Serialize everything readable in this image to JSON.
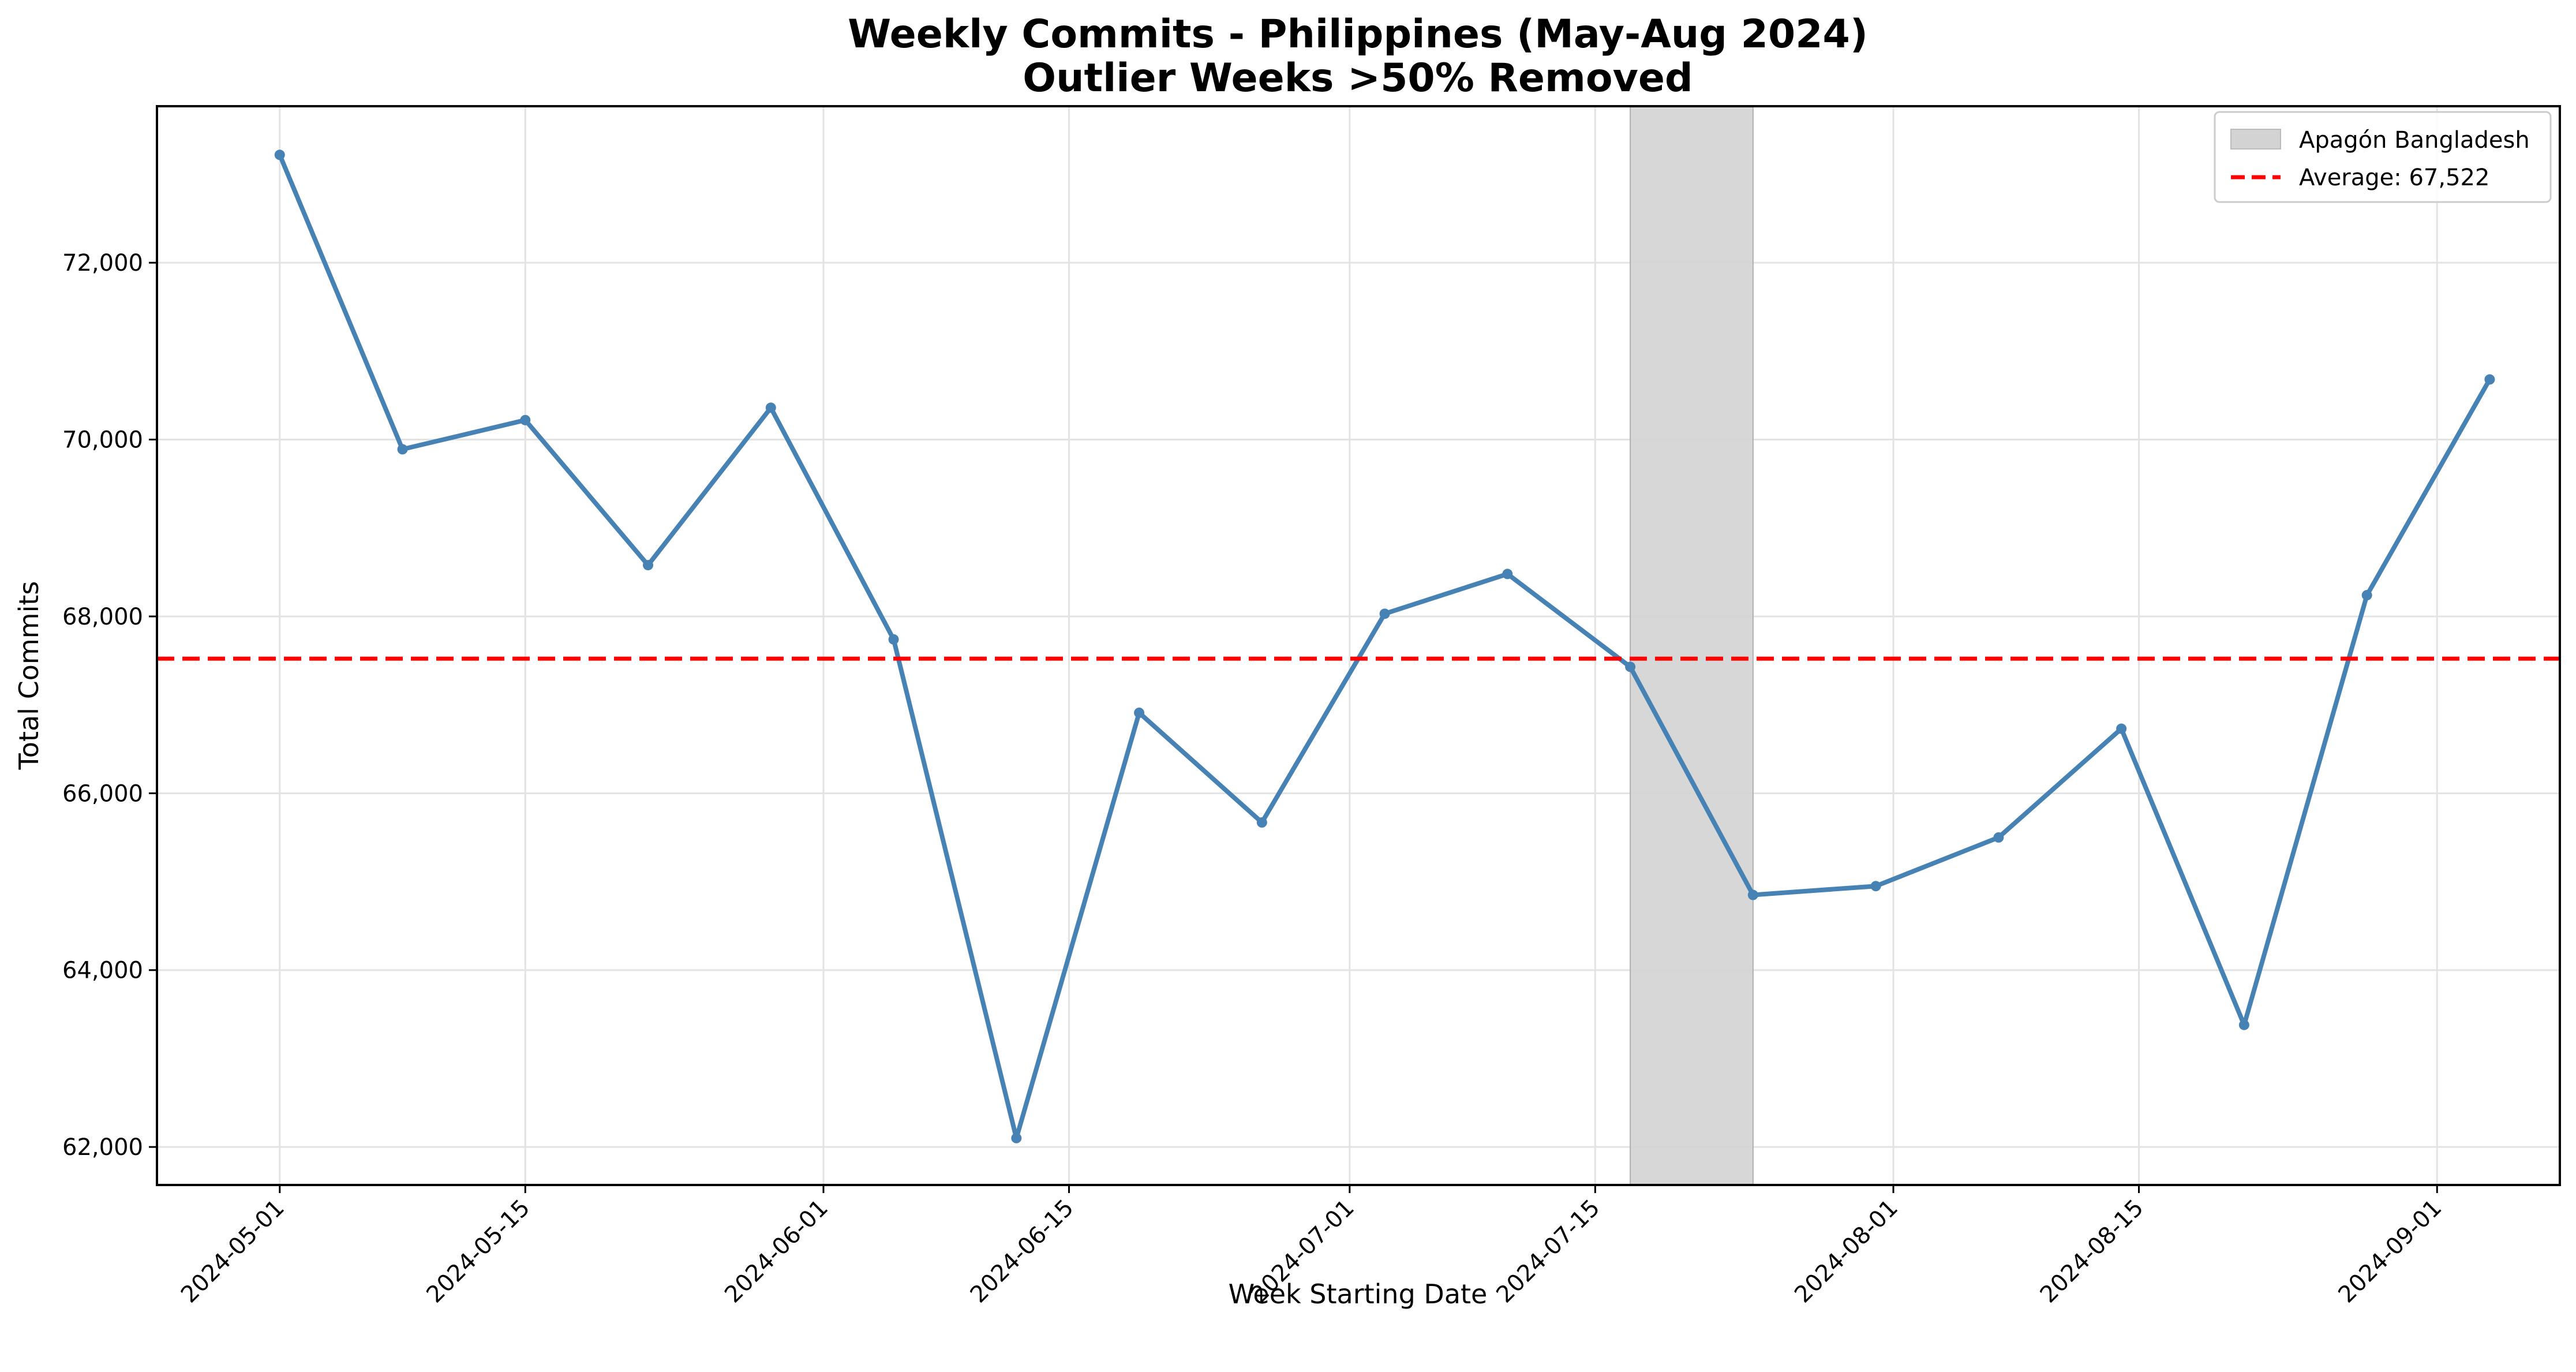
{
  "chart_data": {
    "type": "line",
    "title": "Weekly Commits - Philippines (May-Aug 2024)",
    "subtitle": "Outlier Weeks >50% Removed",
    "xlabel": "Week Starting Date",
    "ylabel": "Total Commits",
    "x_ticks": [
      "2024-05-01",
      "2024-05-15",
      "2024-06-01",
      "2024-06-15",
      "2024-07-01",
      "2024-07-15",
      "2024-08-01",
      "2024-08-15",
      "2024-09-01"
    ],
    "y_ticks": [
      62000,
      64000,
      66000,
      68000,
      70000,
      72000
    ],
    "y_tick_labels": [
      "62,000",
      "64,000",
      "66,000",
      "68,000",
      "70,000",
      "72,000"
    ],
    "xlim": [
      "2024-04-24",
      "2024-09-08"
    ],
    "ylim": [
      61570,
      73770
    ],
    "grid": true,
    "legend_position": "top-right",
    "series": [
      {
        "x": [
          "2024-05-01",
          "2024-05-08",
          "2024-05-15",
          "2024-05-22",
          "2024-05-29",
          "2024-06-05",
          "2024-06-12",
          "2024-06-19",
          "2024-06-26",
          "2024-07-03",
          "2024-07-10",
          "2024-07-17",
          "2024-07-24",
          "2024-07-31",
          "2024-08-07",
          "2024-08-14",
          "2024-08-21",
          "2024-08-28",
          "2024-09-04"
        ],
        "values": [
          73220,
          69890,
          70220,
          68580,
          70360,
          67740,
          62100,
          66910,
          65670,
          68030,
          68480,
          67430,
          64850,
          64950,
          65500,
          66730,
          63380,
          68240,
          70680
        ],
        "color": "#4682b4"
      }
    ],
    "shaded_region": {
      "label": "Apagón Bangladesh",
      "x_start": "2024-07-17",
      "x_end": "2024-07-24",
      "color": "#d3d3d3"
    },
    "average_line": {
      "label": "Average: 67,522",
      "value": 67522,
      "color": "#ff0000"
    }
  }
}
